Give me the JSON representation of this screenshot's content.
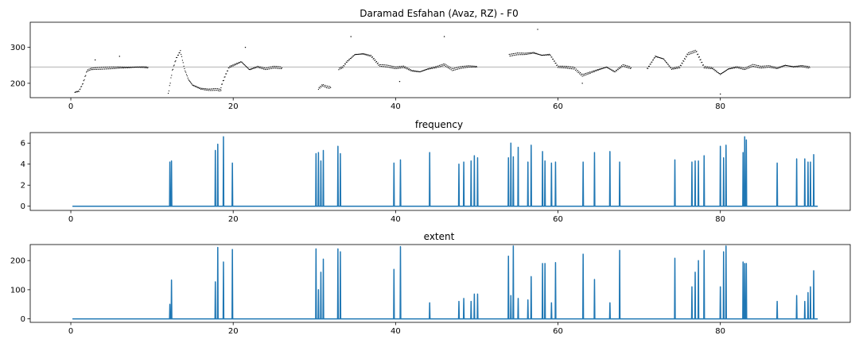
{
  "chart_data": [
    {
      "type": "scatter",
      "title": "Daramad Esfahan (Avaz, RZ) - F0",
      "xlim": [
        -5,
        96
      ],
      "ylim": [
        160,
        370
      ],
      "xticks": [
        0,
        20,
        40,
        60,
        80
      ],
      "yticks": [
        200,
        300
      ],
      "reference_line": {
        "y": 245,
        "color": "#c7c7c7"
      },
      "point_color": "#000000",
      "segments": [
        {
          "x": [
            0.5,
            1.0,
            1.5,
            2.0,
            2.5,
            3.0,
            4.0,
            5.0,
            6.0,
            7.0,
            8.0,
            9.0,
            9.5
          ],
          "y": [
            175,
            178,
            200,
            235,
            240,
            241,
            242,
            243,
            244,
            244,
            245,
            245,
            244
          ]
        },
        {
          "x": [
            12.0,
            12.5,
            13.0,
            13.5,
            14.0,
            14.5,
            15.0,
            16.0,
            17.0,
            18.0,
            18.5
          ],
          "y": [
            170,
            235,
            270,
            290,
            240,
            210,
            195,
            185,
            182,
            183,
            180
          ]
        },
        {
          "x": [
            18.5,
            19.0,
            19.5,
            20.0,
            21.0,
            22.0,
            23.0,
            24.0,
            25.0,
            26.0
          ],
          "y": [
            190,
            220,
            245,
            250,
            260,
            238,
            246,
            240,
            245,
            243
          ]
        },
        {
          "x": [
            30.5,
            31.0,
            31.5,
            32.0
          ],
          "y": [
            185,
            195,
            190,
            188
          ]
        },
        {
          "x": [
            33.0,
            33.5,
            34.0,
            35.0,
            36.0,
            37.0,
            38.0,
            39.0,
            40.0,
            41.0,
            42.0,
            43.0,
            44.0,
            45.0,
            46.0,
            47.0,
            48.0,
            49.0,
            50.0
          ],
          "y": [
            240,
            245,
            260,
            280,
            282,
            276,
            250,
            248,
            243,
            246,
            235,
            232,
            240,
            245,
            252,
            238,
            244,
            247,
            246
          ]
        },
        {
          "x": [
            54.0,
            55.0,
            56.0,
            57.0,
            58.0,
            59.0,
            60.0,
            61.0,
            62.0,
            63.0,
            64.0,
            65.0,
            66.0,
            67.0,
            68.0,
            69.0
          ],
          "y": [
            278,
            282,
            282,
            285,
            278,
            280,
            246,
            245,
            242,
            222,
            230,
            238,
            245,
            232,
            250,
            243
          ]
        },
        {
          "x": [
            71.0,
            72.0,
            73.0,
            74.0,
            75.0,
            76.0,
            77.0,
            78.0,
            79.0,
            80.0,
            81.0,
            82.0,
            83.0,
            84.0,
            85.0,
            86.0,
            87.0,
            88.0,
            89.0,
            90.0,
            91.0
          ],
          "y": [
            240,
            275,
            268,
            240,
            245,
            282,
            290,
            245,
            242,
            225,
            240,
            245,
            240,
            250,
            245,
            247,
            242,
            250,
            246,
            248,
            244
          ]
        }
      ],
      "outliers": [
        {
          "x": 3.0,
          "y": 265
        },
        {
          "x": 6.0,
          "y": 275
        },
        {
          "x": 21.5,
          "y": 300
        },
        {
          "x": 34.5,
          "y": 330
        },
        {
          "x": 40.5,
          "y": 205
        },
        {
          "x": 46.0,
          "y": 330
        },
        {
          "x": 57.5,
          "y": 350
        },
        {
          "x": 63.0,
          "y": 200
        },
        {
          "x": 80.0,
          "y": 170
        }
      ]
    },
    {
      "type": "line",
      "title": "frequency",
      "xlim": [
        -5,
        96
      ],
      "ylim": [
        -0.4,
        7.0
      ],
      "xticks": [
        0,
        20,
        40,
        60,
        80
      ],
      "yticks": [
        0,
        2,
        4,
        6
      ],
      "color": "#1f77b4",
      "x_start": 0.2,
      "x_end": 92.0,
      "baseline": 0,
      "spikes": [
        {
          "x": 12.2,
          "value": 4.2
        },
        {
          "x": 12.4,
          "value": 4.3
        },
        {
          "x": 17.8,
          "value": 5.3
        },
        {
          "x": 18.1,
          "value": 5.9
        },
        {
          "x": 18.8,
          "value": 6.6
        },
        {
          "x": 19.9,
          "value": 4.1
        },
        {
          "x": 30.2,
          "value": 5.0
        },
        {
          "x": 30.5,
          "value": 5.1
        },
        {
          "x": 30.8,
          "value": 4.3
        },
        {
          "x": 31.1,
          "value": 5.3
        },
        {
          "x": 32.9,
          "value": 5.7
        },
        {
          "x": 33.2,
          "value": 5.0
        },
        {
          "x": 39.8,
          "value": 4.1
        },
        {
          "x": 40.6,
          "value": 4.4
        },
        {
          "x": 44.2,
          "value": 5.1
        },
        {
          "x": 47.8,
          "value": 4.0
        },
        {
          "x": 48.4,
          "value": 4.2
        },
        {
          "x": 49.3,
          "value": 4.3
        },
        {
          "x": 49.7,
          "value": 4.8
        },
        {
          "x": 50.1,
          "value": 4.6
        },
        {
          "x": 53.9,
          "value": 4.6
        },
        {
          "x": 54.2,
          "value": 6.0
        },
        {
          "x": 54.5,
          "value": 4.7
        },
        {
          "x": 55.1,
          "value": 5.6
        },
        {
          "x": 56.3,
          "value": 4.2
        },
        {
          "x": 56.7,
          "value": 5.8
        },
        {
          "x": 58.1,
          "value": 5.2
        },
        {
          "x": 58.4,
          "value": 4.3
        },
        {
          "x": 59.2,
          "value": 4.1
        },
        {
          "x": 59.7,
          "value": 4.2
        },
        {
          "x": 63.1,
          "value": 4.2
        },
        {
          "x": 64.5,
          "value": 5.1
        },
        {
          "x": 66.4,
          "value": 5.2
        },
        {
          "x": 67.6,
          "value": 4.2
        },
        {
          "x": 74.4,
          "value": 4.4
        },
        {
          "x": 76.5,
          "value": 4.2
        },
        {
          "x": 76.9,
          "value": 4.3
        },
        {
          "x": 77.3,
          "value": 4.3
        },
        {
          "x": 78.0,
          "value": 4.8
        },
        {
          "x": 80.0,
          "value": 5.7
        },
        {
          "x": 80.4,
          "value": 4.6
        },
        {
          "x": 80.7,
          "value": 5.8
        },
        {
          "x": 82.8,
          "value": 5.1
        },
        {
          "x": 83.0,
          "value": 6.6
        },
        {
          "x": 83.2,
          "value": 6.3
        },
        {
          "x": 87.0,
          "value": 4.1
        },
        {
          "x": 89.4,
          "value": 4.5
        },
        {
          "x": 90.4,
          "value": 4.5
        },
        {
          "x": 90.8,
          "value": 4.2
        },
        {
          "x": 91.1,
          "value": 4.2
        },
        {
          "x": 91.5,
          "value": 4.9
        }
      ]
    },
    {
      "type": "line",
      "title": "extent",
      "xlim": [
        -5,
        96
      ],
      "ylim": [
        -12,
        255
      ],
      "xticks": [
        0,
        20,
        40,
        60,
        80
      ],
      "yticks": [
        0,
        100,
        200
      ],
      "color": "#1f77b4",
      "x_start": 0.2,
      "x_end": 92.0,
      "baseline": 0,
      "spikes": [
        {
          "x": 12.2,
          "value": 50
        },
        {
          "x": 12.4,
          "value": 133
        },
        {
          "x": 17.8,
          "value": 127
        },
        {
          "x": 18.1,
          "value": 245
        },
        {
          "x": 18.8,
          "value": 195
        },
        {
          "x": 19.9,
          "value": 238
        },
        {
          "x": 30.2,
          "value": 240
        },
        {
          "x": 30.5,
          "value": 100
        },
        {
          "x": 30.8,
          "value": 160
        },
        {
          "x": 31.1,
          "value": 205
        },
        {
          "x": 32.9,
          "value": 240
        },
        {
          "x": 33.2,
          "value": 230
        },
        {
          "x": 39.8,
          "value": 170
        },
        {
          "x": 40.6,
          "value": 248
        },
        {
          "x": 44.2,
          "value": 55
        },
        {
          "x": 47.8,
          "value": 60
        },
        {
          "x": 48.4,
          "value": 70
        },
        {
          "x": 49.3,
          "value": 60
        },
        {
          "x": 49.7,
          "value": 85
        },
        {
          "x": 50.1,
          "value": 85
        },
        {
          "x": 53.9,
          "value": 215
        },
        {
          "x": 54.2,
          "value": 80
        },
        {
          "x": 54.5,
          "value": 250
        },
        {
          "x": 55.1,
          "value": 70
        },
        {
          "x": 56.3,
          "value": 65
        },
        {
          "x": 56.7,
          "value": 145
        },
        {
          "x": 58.1,
          "value": 190
        },
        {
          "x": 58.4,
          "value": 190
        },
        {
          "x": 59.2,
          "value": 55
        },
        {
          "x": 59.7,
          "value": 193
        },
        {
          "x": 63.1,
          "value": 222
        },
        {
          "x": 64.5,
          "value": 135
        },
        {
          "x": 66.4,
          "value": 55
        },
        {
          "x": 67.6,
          "value": 235
        },
        {
          "x": 74.4,
          "value": 208
        },
        {
          "x": 76.5,
          "value": 110
        },
        {
          "x": 76.9,
          "value": 160
        },
        {
          "x": 77.3,
          "value": 200
        },
        {
          "x": 78.0,
          "value": 235
        },
        {
          "x": 80.0,
          "value": 110
        },
        {
          "x": 80.4,
          "value": 230
        },
        {
          "x": 80.7,
          "value": 250
        },
        {
          "x": 82.8,
          "value": 195
        },
        {
          "x": 83.0,
          "value": 190
        },
        {
          "x": 83.2,
          "value": 190
        },
        {
          "x": 87.0,
          "value": 60
        },
        {
          "x": 89.4,
          "value": 80
        },
        {
          "x": 90.4,
          "value": 60
        },
        {
          "x": 90.8,
          "value": 90
        },
        {
          "x": 91.1,
          "value": 110
        },
        {
          "x": 91.5,
          "value": 165
        }
      ]
    }
  ]
}
